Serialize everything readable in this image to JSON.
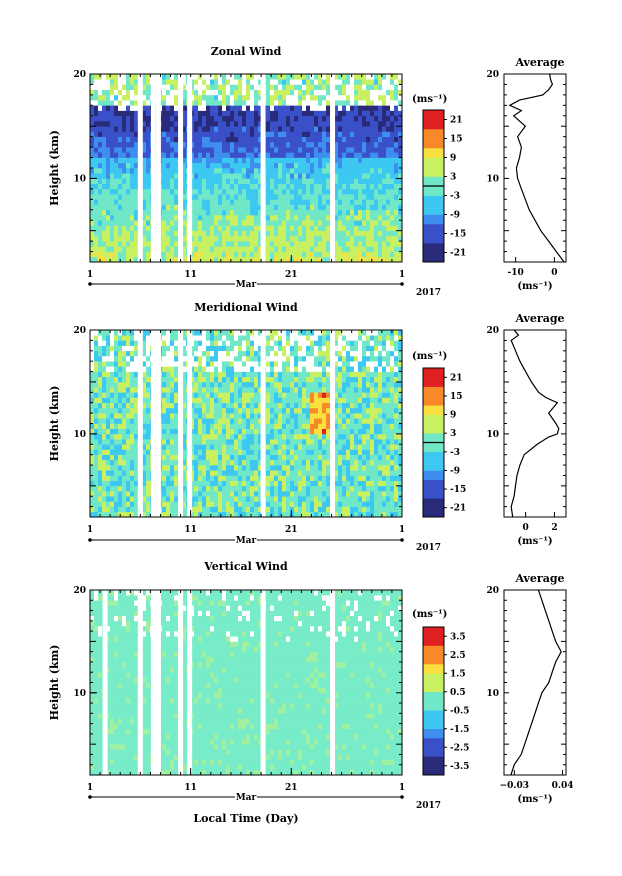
{
  "xaxis": {
    "ticks": [
      {
        "day": 1,
        "label": "1"
      },
      {
        "day": 11,
        "label": "11"
      },
      {
        "day": 21,
        "label": "21"
      },
      {
        "day": 32,
        "label": "1"
      }
    ],
    "month_label": "Mar",
    "year_label": "2017",
    "xlabel": "Local Time (Day)",
    "xlim": [
      1,
      32
    ]
  },
  "chart_data": [
    {
      "type": "heatmap",
      "title": "Zonal Wind",
      "ylabel": "Height (km)",
      "ylim": [
        2,
        20
      ],
      "yticks": [
        {
          "v": 10,
          "label": "10"
        },
        {
          "v": 20,
          "label": "20"
        }
      ],
      "colorbar": {
        "unit": "(ms⁻¹)",
        "range": [
          -24,
          24
        ],
        "ticks": [
          {
            "v": 21,
            "label": "21"
          },
          {
            "v": 15,
            "label": "15"
          },
          {
            "v": 9,
            "label": "9"
          },
          {
            "v": 3,
            "label": "3"
          },
          {
            "v": -3,
            "label": "-3"
          },
          {
            "v": -9,
            "label": "-9"
          },
          {
            "v": -15,
            "label": "-15"
          },
          {
            "v": -21,
            "label": "-21"
          }
        ],
        "zero_line": 0
      },
      "data_gap_days": [
        6.0,
        7.3,
        7.8,
        10.0,
        10.9,
        18.2,
        25.1
      ],
      "average": {
        "title": "Average",
        "unit": "(ms⁻¹)",
        "xlim": [
          -13,
          3
        ],
        "xticks": [
          {
            "v": -10,
            "label": "-10"
          },
          {
            "v": 0,
            "label": "0"
          }
        ],
        "yticks": [
          {
            "v": 10,
            "label": "10"
          },
          {
            "v": 20,
            "label": "20"
          }
        ],
        "profile": [
          [
            2.0,
            2.5
          ],
          [
            3.0,
            0.5
          ],
          [
            4.0,
            -1.5
          ],
          [
            5.0,
            -3.5
          ],
          [
            6.0,
            -5.0
          ],
          [
            7.0,
            -6.5
          ],
          [
            8.0,
            -7.5
          ],
          [
            9.0,
            -8.5
          ],
          [
            10.0,
            -9.5
          ],
          [
            11.0,
            -9.8
          ],
          [
            12.0,
            -9.0
          ],
          [
            13.0,
            -8.5
          ],
          [
            14.0,
            -9.5
          ],
          [
            15.0,
            -7.5
          ],
          [
            16.0,
            -10.5
          ],
          [
            16.5,
            -8.5
          ],
          [
            17.0,
            -11.5
          ],
          [
            17.5,
            -9.0
          ],
          [
            18.0,
            -3.0
          ],
          [
            18.5,
            -1.5
          ],
          [
            19.0,
            -0.5
          ],
          [
            19.5,
            -1.0
          ],
          [
            20.0,
            -1.2
          ]
        ]
      }
    },
    {
      "type": "heatmap",
      "title": "Meridional Wind",
      "ylabel": "Height (km)",
      "ylim": [
        2,
        20
      ],
      "yticks": [
        {
          "v": 10,
          "label": "10"
        },
        {
          "v": 20,
          "label": "20"
        }
      ],
      "colorbar": {
        "unit": "(ms⁻¹)",
        "range": [
          -24,
          24
        ],
        "ticks": [
          {
            "v": 21,
            "label": "21"
          },
          {
            "v": 15,
            "label": "15"
          },
          {
            "v": 9,
            "label": "9"
          },
          {
            "v": 3,
            "label": "3"
          },
          {
            "v": -3,
            "label": "-3"
          },
          {
            "v": -9,
            "label": "-9"
          },
          {
            "v": -15,
            "label": "-15"
          },
          {
            "v": -21,
            "label": "-21"
          }
        ],
        "zero_line": 0
      },
      "data_gap_days": [
        6.0,
        7.3,
        7.8,
        10.0,
        10.9,
        18.2,
        25.1
      ],
      "average": {
        "title": "Average",
        "unit": "(ms⁻¹)",
        "xlim": [
          -1.5,
          2.8
        ],
        "xticks": [
          {
            "v": 0,
            "label": "0"
          },
          {
            "v": 2,
            "label": "2"
          }
        ],
        "profile": [
          [
            2.0,
            -0.9
          ],
          [
            3.0,
            -1.0
          ],
          [
            4.0,
            -0.8
          ],
          [
            5.0,
            -0.7
          ],
          [
            6.0,
            -0.6
          ],
          [
            7.0,
            -0.4
          ],
          [
            8.0,
            -0.1
          ],
          [
            9.0,
            0.8
          ],
          [
            9.7,
            1.6
          ],
          [
            10.0,
            2.2
          ],
          [
            10.5,
            2.3
          ],
          [
            11.0,
            2.1
          ],
          [
            12.0,
            1.6
          ],
          [
            13.0,
            2.2
          ],
          [
            13.5,
            1.4
          ],
          [
            14.0,
            0.9
          ],
          [
            15.0,
            0.4
          ],
          [
            16.0,
            0.0
          ],
          [
            17.0,
            -0.4
          ],
          [
            18.0,
            -0.7
          ],
          [
            19.0,
            -1.0
          ],
          [
            19.5,
            -0.5
          ],
          [
            20.0,
            -0.8
          ]
        ]
      }
    },
    {
      "type": "heatmap",
      "title": "Vertical Wind",
      "ylabel": "Height (km)",
      "ylim": [
        2,
        20
      ],
      "yticks": [
        {
          "v": 10,
          "label": "10"
        },
        {
          "v": 20,
          "label": "20"
        }
      ],
      "colorbar": {
        "unit": "(ms⁻¹)",
        "range": [
          -4,
          4
        ],
        "ticks": [
          {
            "v": 3.5,
            "label": "3.5"
          },
          {
            "v": 2.5,
            "label": "2.5"
          },
          {
            "v": 1.5,
            "label": "1.5"
          },
          {
            "v": 0.5,
            "label": "0.5"
          },
          {
            "v": -0.5,
            "label": "-0.5"
          },
          {
            "v": -1.5,
            "label": "-1.5"
          },
          {
            "v": -2.5,
            "label": "-2.5"
          },
          {
            "v": -3.5,
            "label": "-3.5"
          }
        ]
      },
      "data_gap_days": [
        2.5,
        6.0,
        7.3,
        7.8,
        10.0,
        10.9,
        18.2,
        25.1
      ],
      "average": {
        "title": "Average",
        "unit": "(ms⁻¹)",
        "xlim": [
          -0.045,
          0.045
        ],
        "xticks": [
          {
            "v": -0.03,
            "label": "−0.03"
          },
          {
            "v": 0.04,
            "label": "0.04"
          }
        ],
        "profile": [
          [
            2.0,
            -0.035
          ],
          [
            3.0,
            -0.03
          ],
          [
            4.0,
            -0.02
          ],
          [
            5.0,
            -0.015
          ],
          [
            6.0,
            -0.01
          ],
          [
            7.0,
            -0.005
          ],
          [
            8.0,
            0.0
          ],
          [
            9.0,
            0.005
          ],
          [
            10.0,
            0.01
          ],
          [
            11.0,
            0.02
          ],
          [
            12.0,
            0.025
          ],
          [
            13.0,
            0.03
          ],
          [
            14.0,
            0.038
          ],
          [
            15.0,
            0.03
          ],
          [
            16.0,
            0.025
          ],
          [
            17.0,
            0.02
          ],
          [
            18.0,
            0.015
          ],
          [
            19.0,
            0.01
          ],
          [
            20.0,
            0.005
          ]
        ]
      }
    }
  ]
}
